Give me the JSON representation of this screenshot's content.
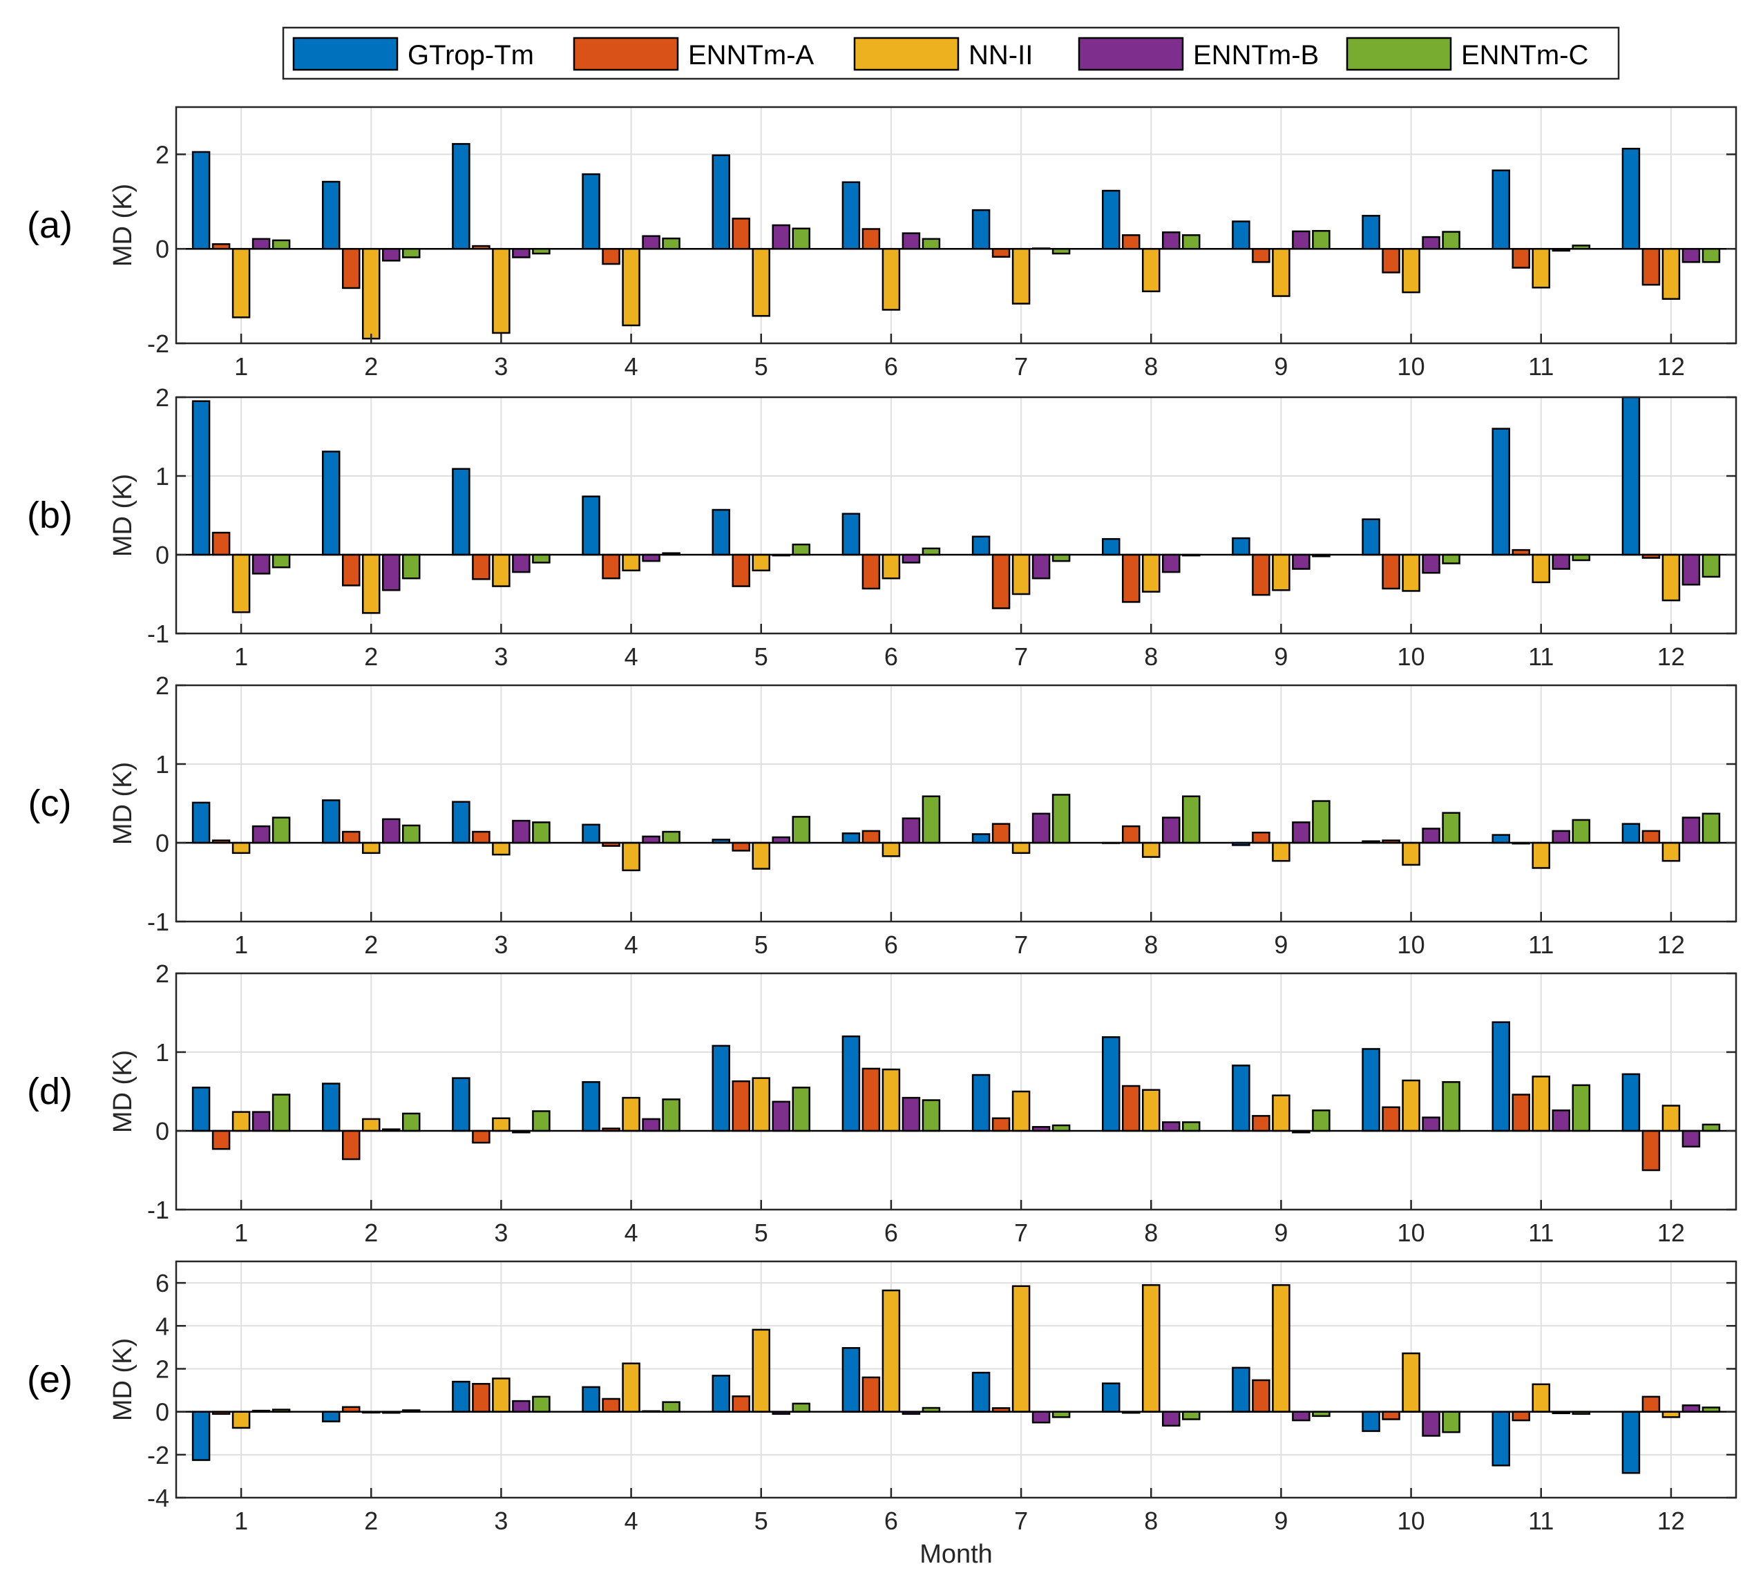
{
  "chart_data": {
    "type": "bar",
    "legend": {
      "placement": "top-center",
      "entries": [
        {
          "name": "GTrop-Tm",
          "color": "#0072BD"
        },
        {
          "name": "ENNTm-A",
          "color": "#D95319"
        },
        {
          "name": "NN-II",
          "color": "#EDB120"
        },
        {
          "name": "ENNTm-B",
          "color": "#7E2F8E"
        },
        {
          "name": "ENNTm-C",
          "color": "#77AC30"
        }
      ]
    },
    "categories": [
      "1",
      "2",
      "3",
      "4",
      "5",
      "6",
      "7",
      "8",
      "9",
      "10",
      "11",
      "12"
    ],
    "xlabel": "Month",
    "grid": true,
    "panels": [
      {
        "label": "(a)",
        "ylabel": "MD (K)",
        "ylim": [
          -2,
          3
        ],
        "yticks": [
          -2,
          0,
          2
        ],
        "series": [
          {
            "name": "GTrop-Tm",
            "values": [
              2.05,
              1.42,
              2.22,
              1.58,
              1.98,
              1.41,
              0.82,
              1.23,
              0.58,
              0.7,
              1.66,
              2.12
            ]
          },
          {
            "name": "ENNTm-A",
            "values": [
              0.1,
              -0.83,
              0.06,
              -0.32,
              0.64,
              0.42,
              -0.17,
              0.29,
              -0.28,
              -0.5,
              -0.4,
              -0.76
            ]
          },
          {
            "name": "NN-II",
            "values": [
              -1.45,
              -1.9,
              -1.78,
              -1.62,
              -1.42,
              -1.29,
              -1.16,
              -0.9,
              -1.0,
              -0.92,
              -0.82,
              -1.06
            ]
          },
          {
            "name": "ENNTm-B",
            "values": [
              0.21,
              -0.25,
              -0.18,
              0.27,
              0.5,
              0.33,
              0.01,
              0.35,
              0.37,
              0.25,
              -0.04,
              -0.28
            ]
          },
          {
            "name": "ENNTm-C",
            "values": [
              0.18,
              -0.18,
              -0.1,
              0.22,
              0.43,
              0.21,
              -0.1,
              0.29,
              0.38,
              0.36,
              0.07,
              -0.28
            ]
          }
        ]
      },
      {
        "label": "(b)",
        "ylabel": "MD (K)",
        "ylim": [
          -1,
          2
        ],
        "yticks": [
          -1,
          0,
          1,
          2
        ],
        "series": [
          {
            "name": "GTrop-Tm",
            "values": [
              1.95,
              1.31,
              1.09,
              0.74,
              0.57,
              0.52,
              0.23,
              0.2,
              0.21,
              0.45,
              1.6,
              2.05
            ]
          },
          {
            "name": "ENNTm-A",
            "values": [
              0.28,
              -0.39,
              -0.31,
              -0.3,
              -0.4,
              -0.43,
              -0.68,
              -0.6,
              -0.51,
              -0.43,
              0.06,
              -0.04
            ]
          },
          {
            "name": "NN-II",
            "values": [
              -0.73,
              -0.74,
              -0.4,
              -0.2,
              -0.2,
              -0.3,
              -0.5,
              -0.47,
              -0.45,
              -0.46,
              -0.35,
              -0.58
            ]
          },
          {
            "name": "ENNTm-B",
            "values": [
              -0.24,
              -0.45,
              -0.22,
              -0.08,
              -0.01,
              -0.1,
              -0.3,
              -0.22,
              -0.18,
              -0.23,
              -0.18,
              -0.38
            ]
          },
          {
            "name": "ENNTm-C",
            "values": [
              -0.16,
              -0.3,
              -0.1,
              0.02,
              0.13,
              0.08,
              -0.08,
              -0.01,
              -0.02,
              -0.11,
              -0.07,
              -0.28
            ]
          }
        ]
      },
      {
        "label": "(c)",
        "ylabel": "MD (K)",
        "ylim": [
          -1,
          2
        ],
        "yticks": [
          -1,
          0,
          1,
          2
        ],
        "series": [
          {
            "name": "GTrop-Tm",
            "values": [
              0.51,
              0.54,
              0.52,
              0.23,
              0.04,
              0.12,
              0.11,
              0.0,
              -0.03,
              0.02,
              0.1,
              0.24
            ]
          },
          {
            "name": "ENNTm-A",
            "values": [
              0.03,
              0.14,
              0.14,
              -0.04,
              -0.1,
              0.15,
              0.24,
              0.21,
              0.13,
              0.03,
              -0.01,
              0.15
            ]
          },
          {
            "name": "NN-II",
            "values": [
              -0.13,
              -0.13,
              -0.15,
              -0.35,
              -0.33,
              -0.17,
              -0.13,
              -0.18,
              -0.23,
              -0.28,
              -0.32,
              -0.23
            ]
          },
          {
            "name": "ENNTm-B",
            "values": [
              0.21,
              0.3,
              0.28,
              0.08,
              0.07,
              0.31,
              0.37,
              0.32,
              0.26,
              0.18,
              0.15,
              0.32
            ]
          },
          {
            "name": "ENNTm-C",
            "values": [
              0.32,
              0.22,
              0.26,
              0.14,
              0.33,
              0.59,
              0.61,
              0.59,
              0.53,
              0.38,
              0.29,
              0.37
            ]
          }
        ]
      },
      {
        "label": "(d)",
        "ylabel": "MD (K)",
        "ylim": [
          -1,
          2
        ],
        "yticks": [
          -1,
          0,
          1,
          2
        ],
        "series": [
          {
            "name": "GTrop-Tm",
            "values": [
              0.55,
              0.6,
              0.67,
              0.62,
              1.08,
              1.2,
              0.71,
              1.19,
              0.83,
              1.04,
              1.38,
              0.72
            ]
          },
          {
            "name": "ENNTm-A",
            "values": [
              -0.23,
              -0.36,
              -0.15,
              0.03,
              0.63,
              0.79,
              0.16,
              0.57,
              0.19,
              0.3,
              0.46,
              -0.5
            ]
          },
          {
            "name": "NN-II",
            "values": [
              0.24,
              0.15,
              0.16,
              0.42,
              0.67,
              0.78,
              0.5,
              0.52,
              0.45,
              0.64,
              0.69,
              0.32
            ]
          },
          {
            "name": "ENNTm-B",
            "values": [
              0.24,
              0.02,
              -0.02,
              0.15,
              0.37,
              0.42,
              0.05,
              0.11,
              -0.02,
              0.17,
              0.26,
              -0.2
            ]
          },
          {
            "name": "ENNTm-C",
            "values": [
              0.46,
              0.22,
              0.25,
              0.4,
              0.55,
              0.39,
              0.07,
              0.11,
              0.26,
              0.62,
              0.58,
              0.08
            ]
          }
        ]
      },
      {
        "label": "(e)",
        "ylabel": "MD (K)",
        "ylim": [
          -4,
          7
        ],
        "yticks": [
          -4,
          -2,
          0,
          2,
          4,
          6
        ],
        "series": [
          {
            "name": "GTrop-Tm",
            "values": [
              -2.25,
              -0.45,
              1.4,
              1.15,
              1.68,
              2.97,
              1.82,
              1.32,
              2.05,
              -0.9,
              -2.5,
              -2.85
            ]
          },
          {
            "name": "ENNTm-A",
            "values": [
              -0.1,
              0.22,
              1.3,
              0.6,
              0.72,
              1.6,
              0.17,
              -0.05,
              1.47,
              -0.35,
              -0.4,
              0.7
            ]
          },
          {
            "name": "NN-II",
            "values": [
              -0.75,
              -0.04,
              1.55,
              2.25,
              3.82,
              5.65,
              5.85,
              5.9,
              5.9,
              2.72,
              1.28,
              -0.25
            ]
          },
          {
            "name": "ENNTm-B",
            "values": [
              0.05,
              -0.05,
              0.5,
              0.03,
              -0.1,
              -0.1,
              -0.5,
              -0.65,
              -0.4,
              -1.12,
              -0.07,
              0.3
            ]
          },
          {
            "name": "ENNTm-C",
            "values": [
              0.1,
              0.07,
              0.7,
              0.45,
              0.38,
              0.18,
              -0.25,
              -0.35,
              -0.2,
              -0.95,
              -0.1,
              0.2
            ]
          }
        ]
      }
    ]
  }
}
